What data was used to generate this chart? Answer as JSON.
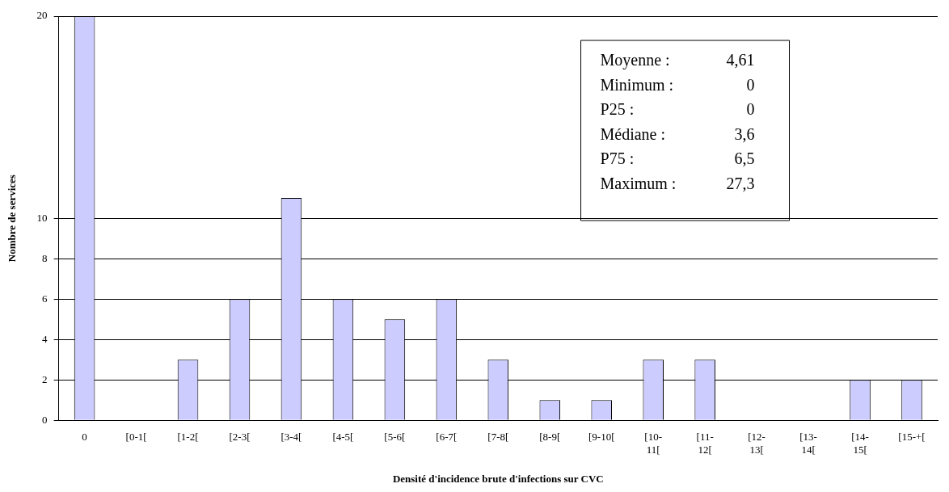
{
  "chart_data": {
    "type": "bar",
    "xlabel": "Densité d'incidence brute d'infections sur CVC",
    "ylabel": "Nombre de services",
    "categories": [
      "0",
      "[0-1[",
      "[1-2[",
      "[2-3[",
      "[3-4[",
      "[4-5[",
      "[5-6[",
      "[6-7[",
      "[7-8[",
      "[8-9[",
      "[9-10[",
      "[10-11[",
      "[11-12[",
      "[12-13[",
      "[13-14[",
      "[14-15[",
      "[15-+["
    ],
    "values": [
      20,
      0,
      3,
      6,
      11,
      6,
      5,
      6,
      3,
      1,
      1,
      3,
      3,
      0,
      0,
      2,
      2
    ],
    "color": "#ccccff",
    "ylim": [
      0,
      20
    ],
    "yticks": [
      0,
      2,
      4,
      6,
      8,
      10,
      20
    ],
    "grid": "y",
    "legend": false,
    "annotations": [
      "Moyenne : 4,61",
      "Minimum : 0",
      "P25 : 0",
      "Médiane : 3,6",
      "P75 : 6,5",
      "Maximum : 27,3"
    ]
  }
}
